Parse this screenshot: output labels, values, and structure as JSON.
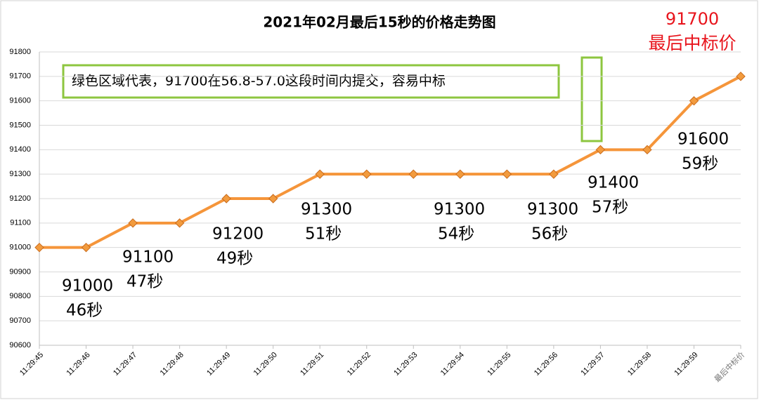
{
  "chart_data": {
    "type": "line",
    "title": "2021年02月最后15秒的价格走势图",
    "categories": [
      "11:29:45",
      "11:29:46",
      "11:29:47",
      "11:29:48",
      "11:29:49",
      "11:29:50",
      "11:29:51",
      "11:29:52",
      "11:29:53",
      "11:29:54",
      "11:29:55",
      "11:29:56",
      "11:29:57",
      "11:29:58",
      "11:29:59",
      "最后中标价"
    ],
    "series": [
      {
        "color": "#f5953a",
        "values": [
          91000,
          91000,
          91100,
          91100,
          91200,
          91200,
          91300,
          91300,
          91300,
          91300,
          91300,
          91300,
          91400,
          91400,
          91600,
          91700
        ]
      }
    ],
    "ylim": [
      90600,
      91800
    ],
    "yticks": [
      90600,
      90700,
      90800,
      90900,
      91000,
      91100,
      91200,
      91300,
      91400,
      91500,
      91600,
      91700,
      91800
    ],
    "grid": true,
    "annotations": [
      {
        "text": [
          "91000",
          "46秒"
        ]
      },
      {
        "text": [
          "91100",
          "47秒"
        ]
      },
      {
        "text": [
          "91200",
          "49秒"
        ]
      },
      {
        "text": [
          "91300",
          "51秒"
        ]
      },
      {
        "text": [
          "91300",
          "54秒"
        ]
      },
      {
        "text": [
          "91300",
          "56秒"
        ]
      },
      {
        "text": [
          "91400",
          "57秒"
        ]
      },
      {
        "text": [
          "91600",
          "59秒"
        ]
      }
    ],
    "note": "绿色区域代表，91700在56.8-57.0这段时间内提交，容易中标",
    "final_price": [
      "91700",
      "最后中标价"
    ]
  }
}
